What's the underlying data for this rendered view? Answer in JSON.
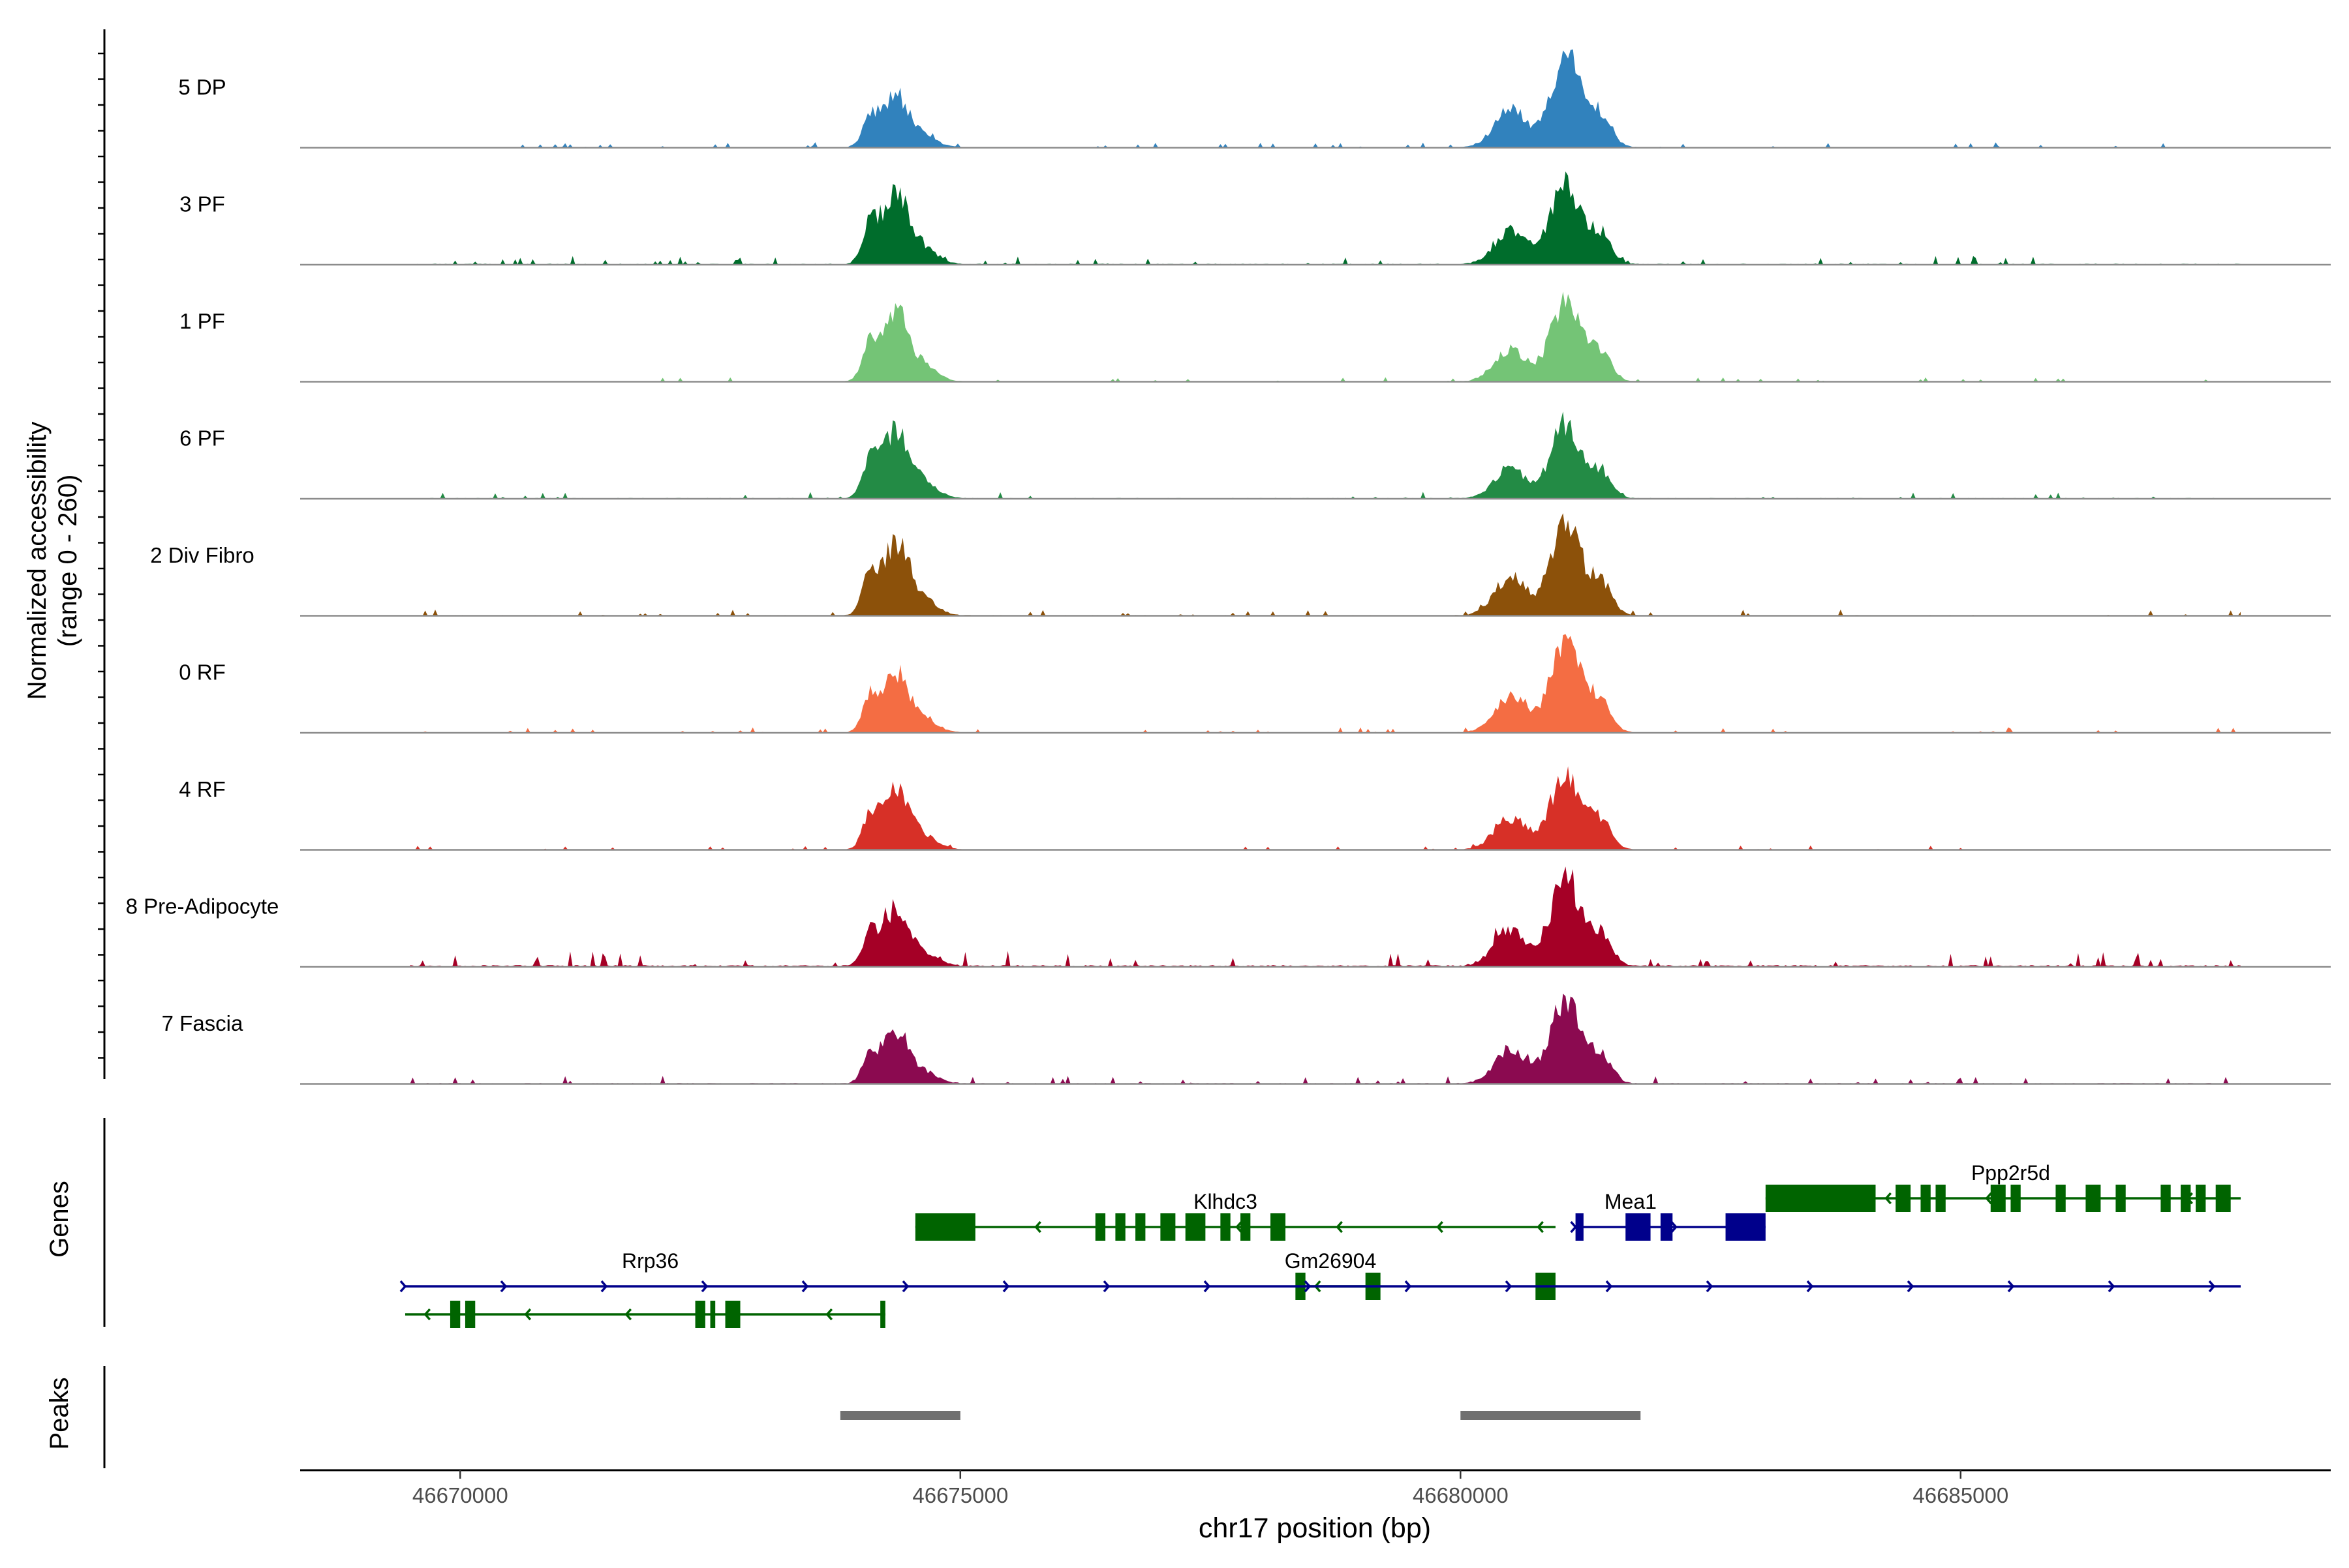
{
  "chart_data": {
    "type": "area",
    "title": "",
    "ylabel_line1": "Normalized accessibility",
    "ylabel_line2": "(range 0 - 260)",
    "xlabel": "chr17 position (bp)",
    "ylim": [
      0,
      260
    ],
    "xlim": [
      46668400,
      46688700
    ],
    "x_ticks": [
      46670000,
      46675000,
      46680000,
      46685000
    ],
    "x_tick_labels": [
      "46670000",
      "46675000",
      "46680000",
      "46685000"
    ],
    "genes_panel_label": "Genes",
    "peaks_panel_label": "Peaks",
    "series": [
      {
        "name": "5 DP",
        "color": "#3182bd",
        "peak1": 150,
        "peak2": 255,
        "noise": 6,
        "seed": 3
      },
      {
        "name": "3 PF",
        "color": "#006d2c",
        "peak1": 210,
        "peak2": 225,
        "noise": 10,
        "seed": 7
      },
      {
        "name": "1 PF",
        "color": "#74c476",
        "peak1": 200,
        "peak2": 220,
        "noise": 5,
        "seed": 11
      },
      {
        "name": "6 PF",
        "color": "#238b45",
        "peak1": 200,
        "peak2": 205,
        "noise": 8,
        "seed": 13
      },
      {
        "name": "2 Div Fibro",
        "color": "#8c510a",
        "peak1": 210,
        "peak2": 260,
        "noise": 7,
        "seed": 17
      },
      {
        "name": "0 RF",
        "color": "#f46d43",
        "peak1": 175,
        "peak2": 250,
        "noise": 6,
        "seed": 19
      },
      {
        "name": "4 RF",
        "color": "#d73027",
        "peak1": 175,
        "peak2": 215,
        "noise": 5,
        "seed": 23
      },
      {
        "name": "8 Pre-Adipocyte",
        "color": "#a50026",
        "peak1": 165,
        "peak2": 250,
        "noise": 18,
        "seed": 29
      },
      {
        "name": "7 Fascia",
        "color": "#8b0a50",
        "peak1": 150,
        "peak2": 230,
        "noise": 9,
        "seed": 31
      }
    ],
    "genes": [
      {
        "name": "Ppp2r5d",
        "strand": "-",
        "row": 0,
        "start": 46683050,
        "end": 46687800,
        "color": "#006400",
        "exons": [
          [
            46683050,
            46684150
          ],
          [
            46684350,
            46684500
          ],
          [
            46684600,
            46684700
          ],
          [
            46684750,
            46684850
          ],
          [
            46685300,
            46685450
          ],
          [
            46685500,
            46685600
          ],
          [
            46685950,
            46686050
          ],
          [
            46686250,
            46686400
          ],
          [
            46686550,
            46686650
          ],
          [
            46687000,
            46687100
          ],
          [
            46687200,
            46687300
          ],
          [
            46687350,
            46687450
          ],
          [
            46687550,
            46687700
          ]
        ],
        "label_x": 46685500
      },
      {
        "name": "Mea1",
        "strand": "+",
        "row": 1,
        "start": 46681150,
        "end": 46683050,
        "color": "#00008b",
        "exons": [
          [
            46681150,
            46681230
          ],
          [
            46681650,
            46681900
          ],
          [
            46682000,
            46682120
          ],
          [
            46682650,
            46683050
          ]
        ],
        "label_x": 46681700
      },
      {
        "name": "Klhdc3",
        "strand": "-",
        "row": 1,
        "start": 46674550,
        "end": 46680950,
        "color": "#006400",
        "exons": [
          [
            46674550,
            46675150
          ],
          [
            46676350,
            46676450
          ],
          [
            46676550,
            46676650
          ],
          [
            46676750,
            46676850
          ],
          [
            46677000,
            46677150
          ],
          [
            46677250,
            46677450
          ],
          [
            46677600,
            46677700
          ],
          [
            46677800,
            46677900
          ],
          [
            46678100,
            46678250
          ]
        ],
        "label_x": 46677650
      },
      {
        "name": "Gm26904",
        "strand": "-",
        "row": 2,
        "start": 46678350,
        "end": 46679200,
        "color": "#006400",
        "exons": [
          [
            46678350,
            46678450
          ],
          [
            46679050,
            46679200
          ],
          [
            46680750,
            46680950
          ]
        ],
        "label_x": 46678700
      },
      {
        "name": "Rrp36",
        "strand": "+",
        "row": 2,
        "start": 46669450,
        "end": 46687800,
        "color": "#00008b",
        "exons": [],
        "label_x": 46671900
      },
      {
        "name": "",
        "strand": "-",
        "row": 3,
        "start": 46669450,
        "end": 46674250,
        "color": "#006400",
        "exons": [
          [
            46669900,
            46670000
          ],
          [
            46670050,
            46670150
          ],
          [
            46672350,
            46672450
          ],
          [
            46672500,
            46672550
          ],
          [
            46672650,
            46672800
          ],
          [
            46674200,
            46674250
          ]
        ],
        "label_x": 46671000
      }
    ],
    "peaks": [
      {
        "start": 46673800,
        "end": 46675000
      },
      {
        "start": 46680000,
        "end": 46681800
      }
    ]
  }
}
